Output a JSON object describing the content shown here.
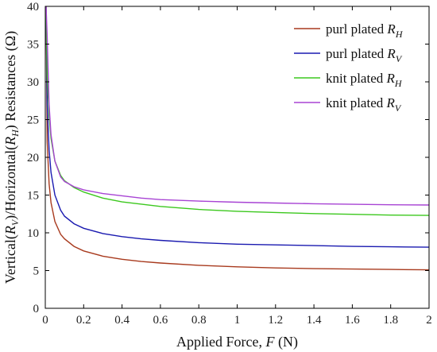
{
  "chart_data": {
    "type": "line",
    "xlabel": "Applied Force, F (N)",
    "ylabel": "Vertical(RV)/Horizontal(RH) Resistances (Ω)",
    "xlabel_parts": {
      "prefix": "Applied Force, ",
      "var": "F",
      "suffix": " (N)"
    },
    "ylabel_parts": {
      "p1": "Vertical(",
      "v1": "R",
      "s1": "V",
      "p2": ")/Horizontal(",
      "v2": "R",
      "s2": "H",
      "p3": ") Resistances (Ω)"
    },
    "xlim": [
      0,
      2
    ],
    "ylim": [
      0,
      40
    ],
    "xticks": [
      0,
      0.2,
      0.4,
      0.6,
      0.8,
      1,
      1.2,
      1.4,
      1.6,
      1.8,
      2
    ],
    "xtick_labels": [
      "0",
      "0.2",
      "0.4",
      "0.6",
      "0.8",
      "1",
      "1.2",
      "1.4",
      "1.6",
      "1.8",
      "2"
    ],
    "yticks": [
      0,
      5,
      10,
      15,
      20,
      25,
      30,
      35,
      40
    ],
    "ytick_labels": [
      "0",
      "5",
      "10",
      "15",
      "20",
      "25",
      "30",
      "35",
      "40"
    ],
    "grid": false,
    "legend_position": "top-right",
    "x": [
      0.01,
      0.02,
      0.03,
      0.05,
      0.08,
      0.1,
      0.15,
      0.2,
      0.3,
      0.4,
      0.5,
      0.6,
      0.8,
      1.0,
      1.2,
      1.4,
      1.6,
      1.8,
      2.0
    ],
    "series": [
      {
        "name": "purl plated RH",
        "label": "purl plated ",
        "var": "R",
        "sub": "H",
        "color": "#a83a1e",
        "values": [
          22.0,
          16.5,
          14.0,
          11.5,
          9.8,
          9.2,
          8.2,
          7.6,
          6.9,
          6.5,
          6.2,
          6.0,
          5.7,
          5.5,
          5.35,
          5.25,
          5.2,
          5.15,
          5.1
        ]
      },
      {
        "name": "purl plated RV",
        "label": "purl plated ",
        "var": "R",
        "sub": "V",
        "color": "#1a1ab0",
        "values": [
          27.0,
          21.0,
          18.0,
          15.0,
          13.0,
          12.2,
          11.2,
          10.6,
          9.9,
          9.5,
          9.2,
          9.0,
          8.7,
          8.5,
          8.4,
          8.3,
          8.2,
          8.15,
          8.1
        ]
      },
      {
        "name": "knit plated RH",
        "label": "knit plated ",
        "var": "R",
        "sub": "H",
        "color": "#3cc81e",
        "values": [
          31.0,
          25.5,
          22.5,
          19.5,
          17.6,
          16.9,
          16.0,
          15.4,
          14.6,
          14.1,
          13.8,
          13.5,
          13.1,
          12.85,
          12.7,
          12.55,
          12.45,
          12.35,
          12.3
        ]
      },
      {
        "name": "knit plated RV",
        "label": "knit plated ",
        "var": "R",
        "sub": "V",
        "color": "#a844d4",
        "values": [
          36.0,
          27.0,
          23.0,
          19.5,
          17.4,
          16.8,
          16.1,
          15.7,
          15.2,
          14.9,
          14.6,
          14.4,
          14.2,
          14.05,
          13.95,
          13.85,
          13.78,
          13.72,
          13.68
        ]
      }
    ]
  }
}
